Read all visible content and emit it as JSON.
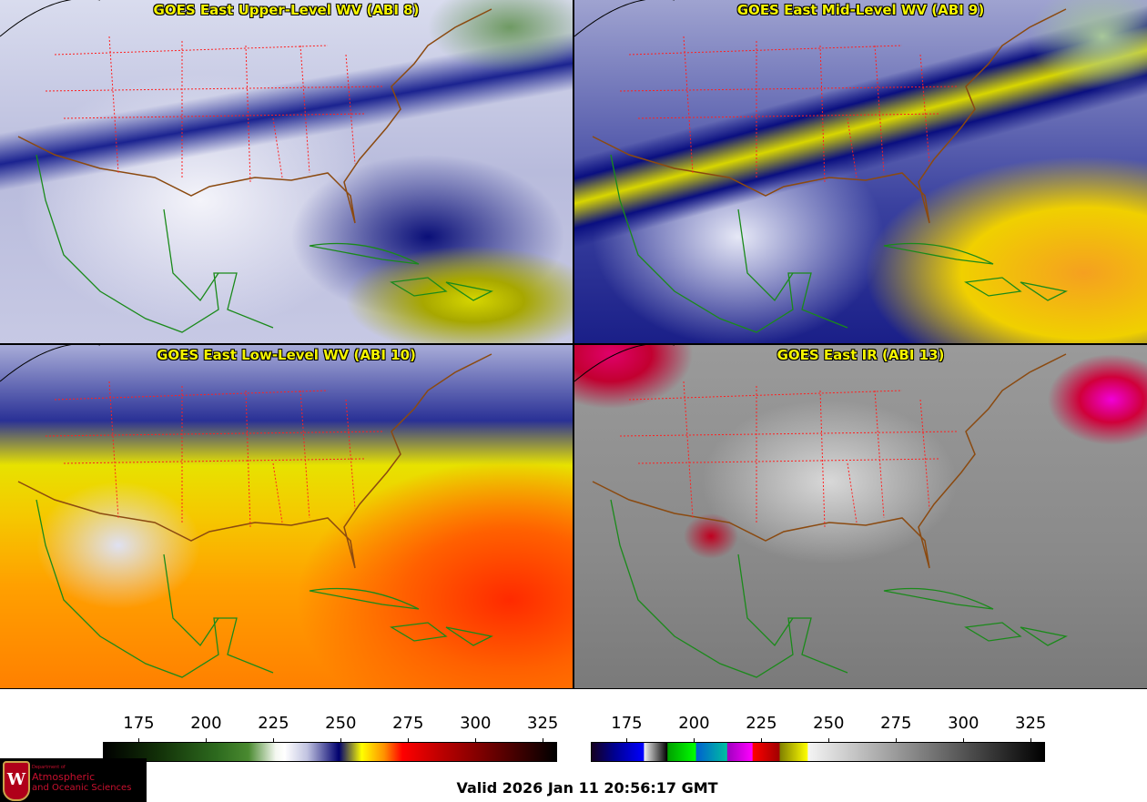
{
  "panels": [
    {
      "id": "abi8",
      "title": "GOES East Upper-Level WV (ABI 8)"
    },
    {
      "id": "abi9",
      "title": "GOES East Mid-Level WV (ABI 9)"
    },
    {
      "id": "abi10",
      "title": "GOES East Low-Level WV (ABI 10)"
    },
    {
      "id": "abi13",
      "title": "GOES East IR (ABI 13)"
    }
  ],
  "colorbars": [
    {
      "name": "water-vapor",
      "range": [
        162,
        330
      ],
      "ticks": [
        "175",
        "200",
        "225",
        "250",
        "275",
        "300",
        "325"
      ]
    },
    {
      "name": "infrared",
      "range": [
        162,
        330
      ],
      "ticks": [
        "175",
        "200",
        "225",
        "250",
        "275",
        "300",
        "325"
      ]
    }
  ],
  "logo": {
    "line1": "Department of",
    "line2": "Atmospheric",
    "line3": "and Oceanic Sciences",
    "emblem": "W"
  },
  "valid_time": "Valid 2026 Jan 11 20:56:17 GMT",
  "colors": {
    "title": "#f5f500",
    "coast": "#8b4a10",
    "states": "#ff2020",
    "islands": "#1a8a1a"
  }
}
